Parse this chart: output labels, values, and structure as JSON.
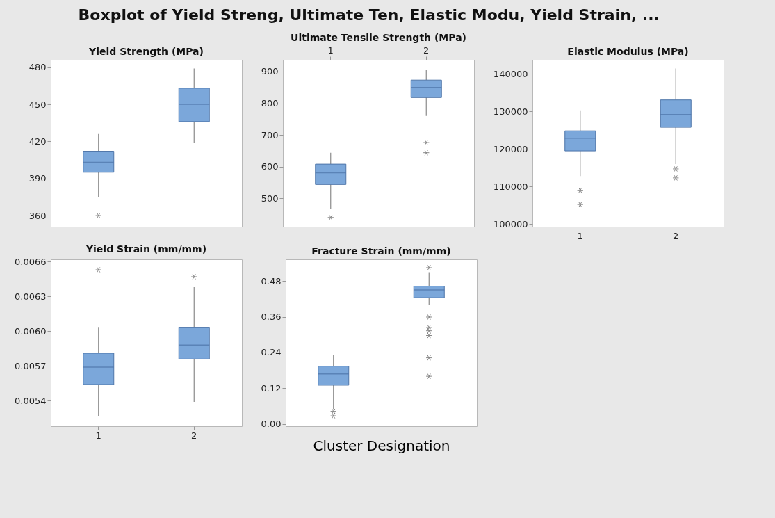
{
  "chart_data": [
    {
      "type": "box",
      "title": "Yield Strength (MPa)",
      "annotations": [
        "Boxplot of Yield Streng, Ultimate Ten, Elastic Modu, Yield Strain, ..."
      ],
      "categories": [
        "1",
        "2"
      ],
      "tick_labels": "y",
      "ylim": [
        351,
        486
      ],
      "yticks": [
        360,
        390,
        420,
        450,
        480
      ],
      "series": [
        {
          "color": "#7ba7da",
          "boxes": [
            {
              "low": 375,
              "q1": 395,
              "median": 403,
              "q3": 412,
              "high": 426,
              "outliers": [
                360
              ]
            },
            {
              "low": 419,
              "q1": 436,
              "median": 450,
              "q3": 463,
              "high": 479
            }
          ]
        }
      ]
    },
    {
      "type": "box",
      "title": "Ultimate Tensile Strength (MPa)",
      "categories": [
        "1",
        "2"
      ],
      "tick_labels": "xy",
      "ylim": [
        411,
        937
      ],
      "yticks": [
        500,
        600,
        700,
        800,
        900
      ],
      "series": [
        {
          "color": "#7ba7da",
          "boxes": [
            {
              "low": 468,
              "q1": 544,
              "median": 581,
              "q3": 608,
              "high": 644,
              "outliers": [
                440
              ]
            },
            {
              "low": 760,
              "q1": 818,
              "median": 850,
              "q3": 873,
              "high": 906,
              "outliers": [
                676,
                644
              ]
            }
          ]
        }
      ]
    },
    {
      "type": "box",
      "title": "Elastic Modulus (MPa)",
      "categories": [
        "1",
        "2"
      ],
      "ylim": [
        99300,
        143800
      ],
      "yticks": [
        100000,
        110000,
        120000,
        130000,
        140000
      ],
      "series": [
        {
          "color": "#7ba7da",
          "boxes": [
            {
              "low": 112800,
              "q1": 119500,
              "median": 122900,
              "q3": 124850,
              "high": 130300,
              "outliers": [
                109000,
                105200
              ]
            },
            {
              "low": 116000,
              "q1": 125800,
              "median": 129200,
              "q3": 133100,
              "high": 141500,
              "outliers": [
                114700,
                112300
              ]
            }
          ]
        }
      ]
    },
    {
      "type": "box",
      "title": "Yield Strain (mm/mm)",
      "categories": [
        "1",
        "2"
      ],
      "ylim": [
        0.00518,
        0.00662
      ],
      "yticks": [
        0.0054,
        0.0057,
        {
          "value": 0.006,
          "label": "0.0060"
        },
        0.0063,
        0.0066
      ],
      "series": [
        {
          "color": "#7ba7da",
          "boxes": [
            {
              "low": 0.00527,
              "q1": 0.00554,
              "median": 0.00569,
              "q3": 0.00581,
              "high": 0.00603,
              "outliers": [
                0.00653
              ]
            },
            {
              "low": 0.00539,
              "q1": 0.00576,
              "median": 0.00588,
              "q3": 0.00603,
              "high": 0.00638,
              "outliers": [
                0.00647
              ]
            }
          ]
        }
      ]
    },
    {
      "type": "box",
      "title": "Fracture Strain (mm/mm)",
      "xlabel": "Cluster Designation",
      "categories": [
        "1",
        "2"
      ],
      "tick_labels": "y",
      "ylim": [
        -0.008,
        0.553
      ],
      "yticks": [
        {
          "value": 0,
          "label": "0.00"
        },
        0.12,
        0.24,
        0.36,
        0.48
      ],
      "series": [
        {
          "color": "#7ba7da",
          "boxes": [
            {
              "low": 0.05,
              "q1": 0.13,
              "median": 0.168,
              "q3": 0.194,
              "high": 0.233,
              "outliers": [
                0.042,
                0.027
              ]
            },
            {
              "low": 0.4,
              "q1": 0.424,
              "median": 0.45,
              "q3": 0.463,
              "high": 0.51,
              "outliers": [
                0.525,
                0.359,
                0.324,
                0.313,
                0.297,
                0.222,
                0.16
              ]
            }
          ]
        }
      ]
    }
  ]
}
